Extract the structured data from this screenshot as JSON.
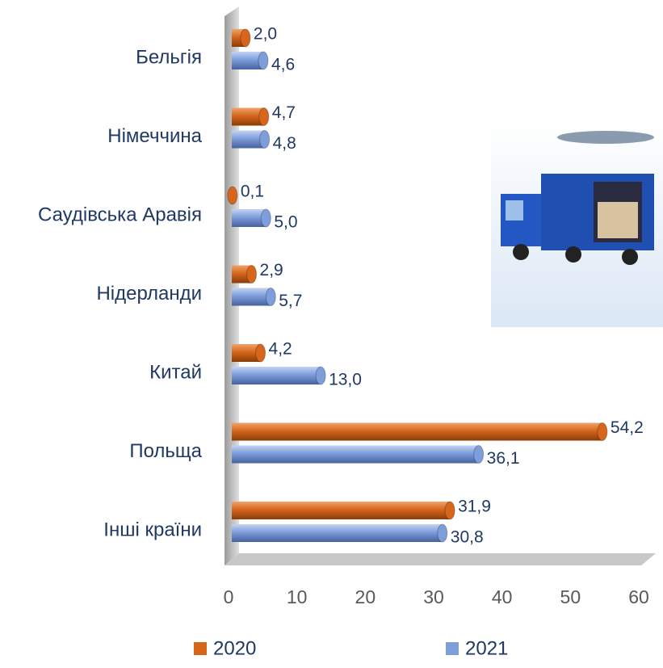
{
  "chart_data": {
    "type": "bar",
    "orientation": "horizontal",
    "categories": [
      "Бельгія",
      "Німеччина",
      "Саудівська Аравія",
      "Нідерланди",
      "Китай",
      "Польща",
      "Інші країни"
    ],
    "series": [
      {
        "name": "2020",
        "color": "#d5661c",
        "values": [
          2.0,
          4.7,
          0.1,
          2.9,
          4.2,
          54.2,
          31.9
        ],
        "value_labels": [
          "2,0",
          "4,7",
          "0,1",
          "2,9",
          "4,2",
          "54,2",
          "31,9"
        ]
      },
      {
        "name": "2021",
        "color": "#7d9ddb",
        "values": [
          4.6,
          4.8,
          5.0,
          5.7,
          13.0,
          36.1,
          30.8
        ],
        "value_labels": [
          "4,6",
          "4,8",
          "5,0",
          "5,7",
          "13,0",
          "36,1",
          "30,8"
        ]
      }
    ],
    "xlim": [
      0,
      60
    ],
    "xticks": [
      0,
      10,
      20,
      30,
      40,
      50,
      60
    ],
    "grid": false,
    "legend": "bottom"
  }
}
